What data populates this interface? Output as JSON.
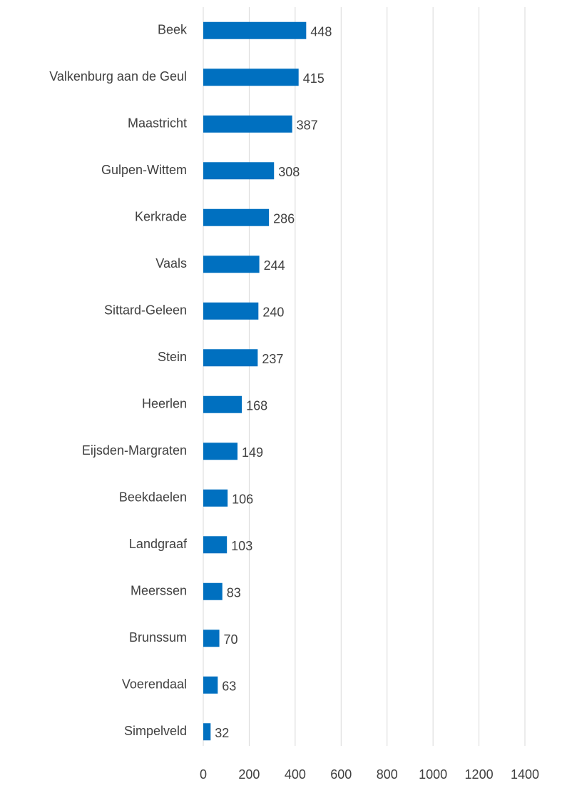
{
  "chart_data": {
    "type": "bar",
    "orientation": "horizontal",
    "categories": [
      "Beek",
      "Valkenburg aan de Geul",
      "Maastricht",
      "Gulpen-Wittem",
      "Kerkrade",
      "Vaals",
      "Sittard-Geleen",
      "Stein",
      "Heerlen",
      "Eijsden-Margraten",
      "Beekdaelen",
      "Landgraaf",
      "Meerssen",
      "Brunssum",
      "Voerendaal",
      "Simpelveld"
    ],
    "values": [
      448,
      415,
      387,
      308,
      286,
      244,
      240,
      237,
      168,
      149,
      106,
      103,
      83,
      70,
      63,
      32
    ],
    "color": "#0070c0",
    "xlim": [
      0,
      1400
    ],
    "xticks": [
      0,
      200,
      400,
      600,
      800,
      1000,
      1200,
      1400
    ],
    "grid": true
  }
}
